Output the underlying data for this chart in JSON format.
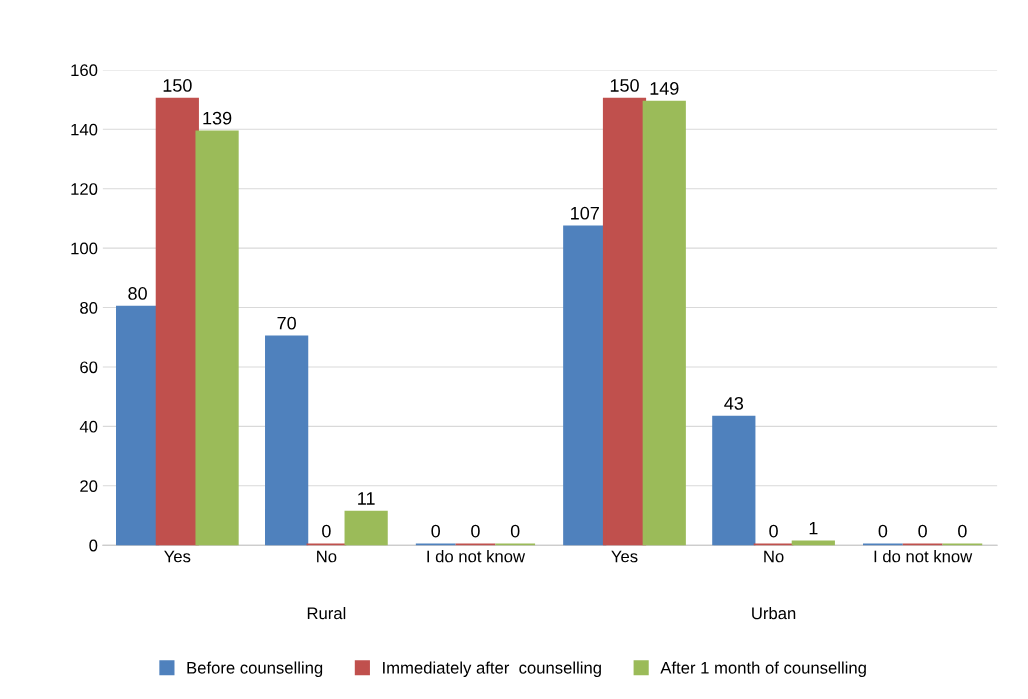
{
  "chart_data": {
    "type": "bar",
    "categories": [
      "Yes",
      "No",
      "I do not know",
      "Yes",
      "No",
      "I do not know"
    ],
    "series": [
      {
        "name": "Before counselling",
        "color": "#4f81bd",
        "values": [
          80,
          70,
          0,
          107,
          43,
          0
        ]
      },
      {
        "name": "Immediately after  counselling",
        "color": "#c0504d",
        "values": [
          150,
          0,
          0,
          150,
          0,
          0
        ]
      },
      {
        "name": "After 1 month of counselling",
        "color": "#9bbb59",
        "values": [
          139,
          11,
          0,
          149,
          1,
          0
        ]
      }
    ],
    "annotations": [
      "Rural",
      "Urban"
    ],
    "ylim": [
      0,
      160
    ],
    "yticks": [
      0,
      20,
      40,
      60,
      80,
      100,
      120,
      140,
      160
    ],
    "grid": "y",
    "legend": "bottom",
    "data_labels": true
  }
}
